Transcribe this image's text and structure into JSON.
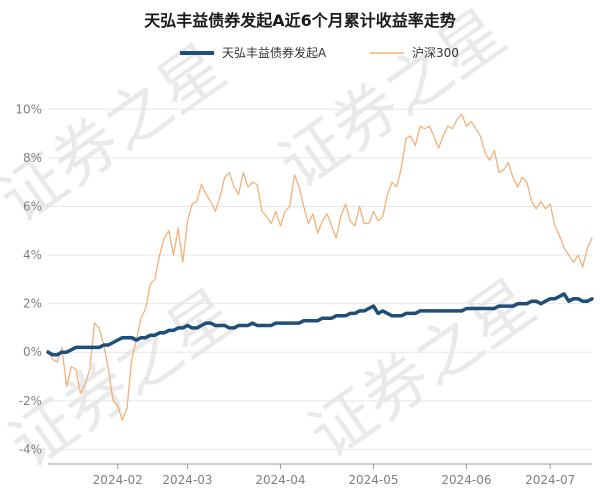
{
  "watermark": "证券之星",
  "chart_data": {
    "type": "line",
    "title": "天弘丰益债券发起A近6个月累计收益率走势",
    "xlabel": "",
    "ylabel": "",
    "ylim": [
      -4.6,
      11.0
    ],
    "yticks": [
      -4,
      -2,
      0,
      2,
      4,
      6,
      8,
      10
    ],
    "ytick_labels": [
      "-4%",
      "-2%",
      "0%",
      "2%",
      "4%",
      "6%",
      "8%",
      "10%"
    ],
    "x_count": 118,
    "xticks": [
      15,
      30,
      50,
      70,
      90,
      108
    ],
    "xtick_labels": [
      "2024-02",
      "2024-03",
      "2024-04",
      "2024-05",
      "2024-06",
      "2024-07"
    ],
    "legend_position": "top-center",
    "series": [
      {
        "name": "天弘丰益债券发起A",
        "color": "#1f4e79",
        "values": [
          0.0,
          -0.1,
          -0.1,
          0.0,
          0.0,
          0.1,
          0.2,
          0.2,
          0.2,
          0.2,
          0.2,
          0.2,
          0.3,
          0.3,
          0.4,
          0.5,
          0.6,
          0.6,
          0.6,
          0.5,
          0.6,
          0.6,
          0.7,
          0.7,
          0.8,
          0.8,
          0.9,
          0.9,
          1.0,
          1.0,
          1.1,
          1.0,
          1.0,
          1.1,
          1.2,
          1.2,
          1.1,
          1.1,
          1.1,
          1.0,
          1.0,
          1.1,
          1.1,
          1.1,
          1.2,
          1.1,
          1.1,
          1.1,
          1.1,
          1.2,
          1.2,
          1.2,
          1.2,
          1.2,
          1.2,
          1.3,
          1.3,
          1.3,
          1.3,
          1.4,
          1.4,
          1.4,
          1.5,
          1.5,
          1.5,
          1.6,
          1.6,
          1.7,
          1.7,
          1.8,
          1.9,
          1.6,
          1.7,
          1.6,
          1.5,
          1.5,
          1.5,
          1.6,
          1.6,
          1.6,
          1.7,
          1.7,
          1.7,
          1.7,
          1.7,
          1.7,
          1.7,
          1.7,
          1.7,
          1.7,
          1.8,
          1.8,
          1.8,
          1.8,
          1.8,
          1.8,
          1.8,
          1.9,
          1.9,
          1.9,
          1.9,
          2.0,
          2.0,
          2.0,
          2.1,
          2.1,
          2.0,
          2.1,
          2.2,
          2.2,
          2.3,
          2.4,
          2.1,
          2.2,
          2.2,
          2.1,
          2.1,
          2.2
        ]
      },
      {
        "name": "沪深300",
        "color": "#f0b27a",
        "values": [
          0.1,
          -0.3,
          -0.4,
          0.2,
          -1.4,
          -0.6,
          -0.7,
          -1.7,
          -1.3,
          -0.7,
          1.2,
          1.0,
          0.3,
          -0.7,
          -2.0,
          -2.2,
          -2.8,
          -2.3,
          -0.3,
          0.5,
          1.4,
          1.8,
          2.8,
          3.0,
          4.0,
          4.7,
          5.0,
          4.0,
          5.1,
          3.7,
          5.4,
          6.1,
          6.2,
          6.9,
          6.5,
          6.2,
          5.8,
          6.4,
          7.2,
          7.4,
          6.8,
          6.5,
          7.4,
          6.8,
          7.0,
          6.9,
          5.8,
          5.6,
          5.3,
          5.8,
          5.2,
          5.8,
          6.0,
          7.3,
          6.8,
          6.0,
          5.3,
          5.7,
          4.9,
          5.4,
          5.7,
          5.2,
          4.7,
          5.6,
          6.1,
          5.4,
          5.2,
          6.0,
          5.3,
          5.3,
          5.8,
          5.4,
          5.6,
          6.5,
          7.0,
          6.8,
          7.6,
          8.8,
          8.9,
          8.5,
          9.3,
          9.2,
          9.3,
          8.9,
          8.4,
          8.9,
          9.3,
          9.2,
          9.6,
          9.8,
          9.3,
          9.5,
          9.2,
          8.9,
          8.2,
          7.9,
          8.3,
          7.4,
          7.5,
          7.8,
          7.2,
          6.8,
          7.2,
          7.0,
          6.2,
          5.9,
          6.2,
          5.9,
          6.1,
          5.2,
          4.8,
          4.3,
          4.0,
          3.7,
          4.0,
          3.5,
          4.3,
          4.7
        ]
      }
    ]
  }
}
